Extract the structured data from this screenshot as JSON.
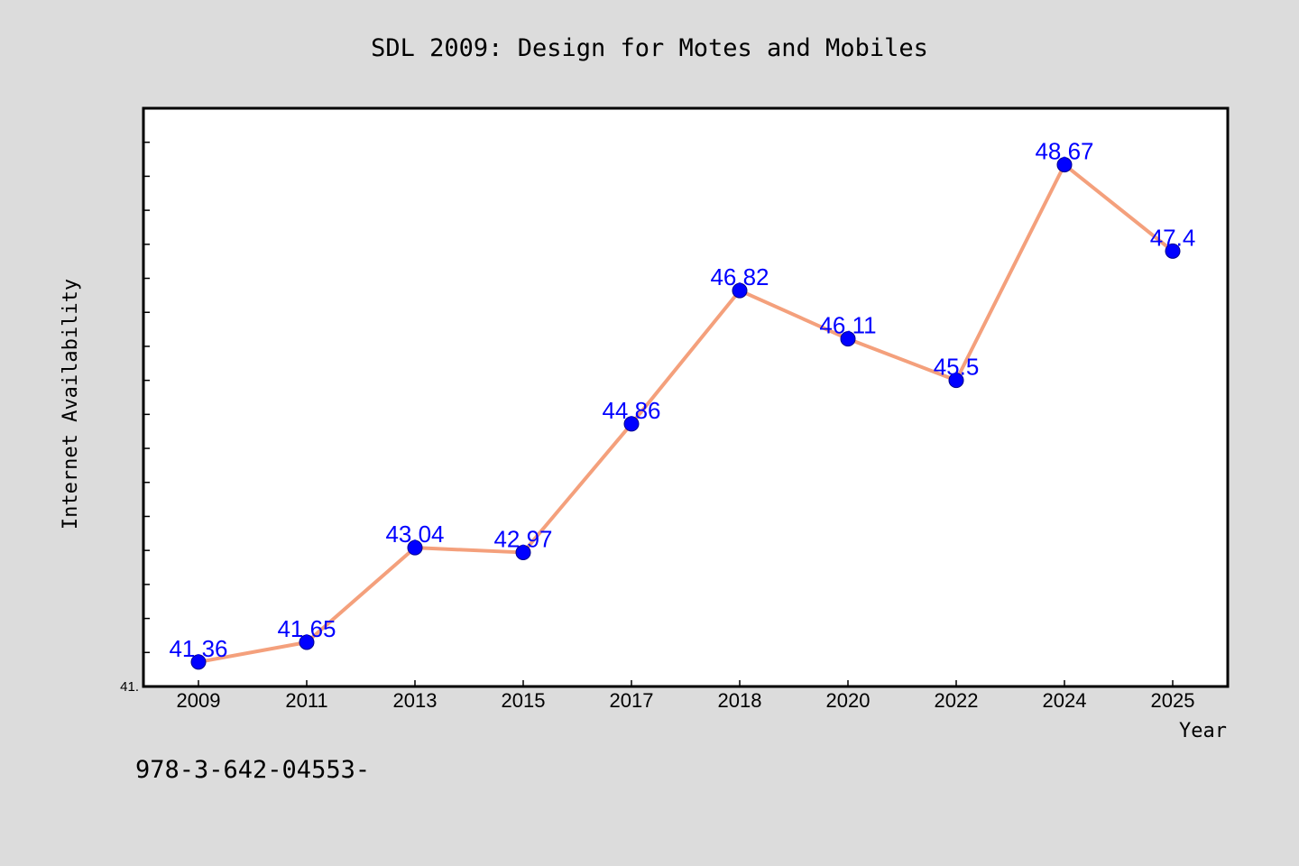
{
  "chart_data": {
    "type": "line",
    "title": "SDL 2009: Design for Motes and Mobiles",
    "xlabel": "Year",
    "ylabel": "Internet Availability",
    "categories": [
      "2009",
      "2011",
      "2013",
      "2015",
      "2017",
      "2018",
      "2020",
      "2022",
      "2024",
      "2025"
    ],
    "values": [
      41.36,
      41.65,
      43.04,
      42.97,
      44.86,
      46.82,
      46.11,
      45.5,
      48.67,
      47.4
    ],
    "data_labels": [
      "41.36",
      "41.65",
      "43.04",
      "42.97",
      "44.86",
      "46.82",
      "46.11",
      "45.5",
      "48.67",
      "47.4"
    ],
    "ylim": [
      41.0,
      49.5
    ],
    "y_minor_tick_step": 0.5,
    "y_tick_labels": [
      "41."
    ],
    "grid": false,
    "legend": "none",
    "colors": {
      "line": "#f4a07c",
      "marker": "#0000ff",
      "data_label": "#0000ff",
      "plot_background": "#ffffff",
      "page_background": "#dcdcdc"
    }
  },
  "footnote": "978-3-642-04553-"
}
